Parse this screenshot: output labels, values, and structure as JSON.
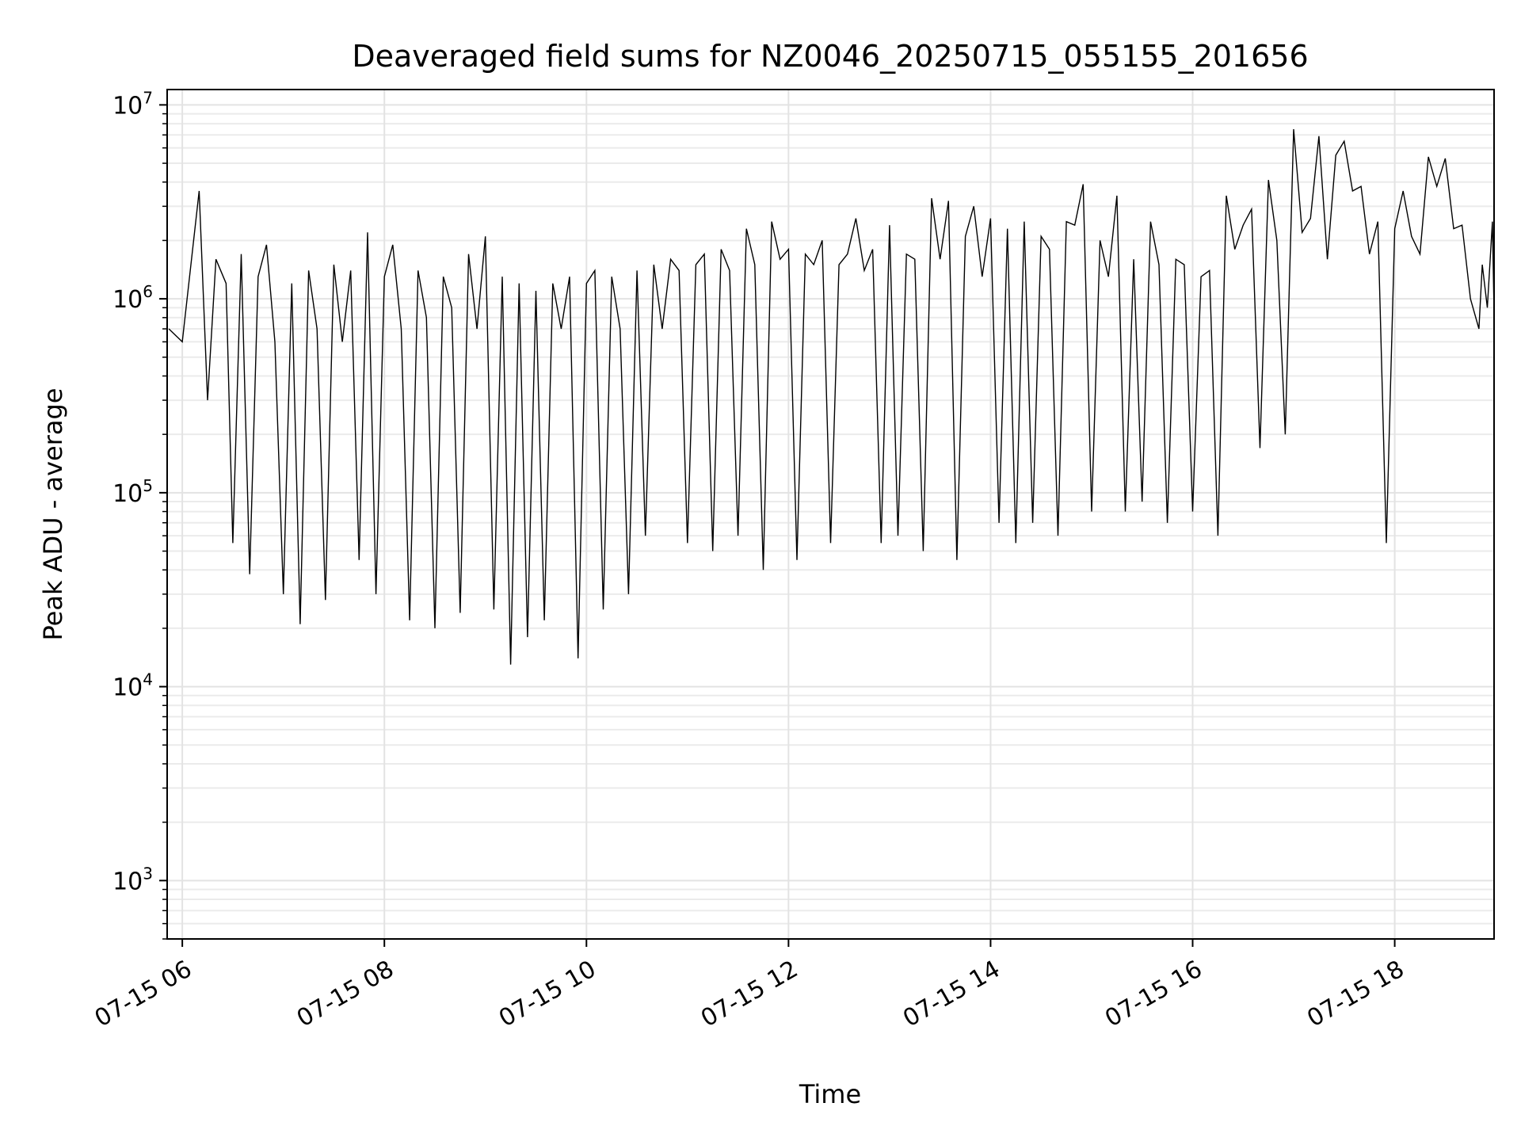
{
  "chart_data": {
    "type": "line",
    "title": "Deaveraged field sums for NZ0046_20250715_055155_201656",
    "xlabel": "Time",
    "ylabel": "Peak ADU - average",
    "yscale": "log",
    "ylim": [
      500,
      12000000
    ],
    "xlim": [
      "2025-07-15 05:51",
      "2025-07-15 18:59"
    ],
    "grid": true,
    "line_color": "#000000",
    "x_ticks": [
      {
        "label": "07-15 06",
        "value": "2025-07-15 06:00"
      },
      {
        "label": "07-15 08",
        "value": "2025-07-15 08:00"
      },
      {
        "label": "07-15 10",
        "value": "2025-07-15 10:00"
      },
      {
        "label": "07-15 12",
        "value": "2025-07-15 12:00"
      },
      {
        "label": "07-15 14",
        "value": "2025-07-15 14:00"
      },
      {
        "label": "07-15 16",
        "value": "2025-07-15 16:00"
      },
      {
        "label": "07-15 18",
        "value": "2025-07-15 18:00"
      }
    ],
    "y_ticks": [
      {
        "base": "10",
        "exp": "3",
        "value": 1000
      },
      {
        "base": "10",
        "exp": "4",
        "value": 10000
      },
      {
        "base": "10",
        "exp": "5",
        "value": 100000
      },
      {
        "base": "10",
        "exp": "6",
        "value": 1000000
      },
      {
        "base": "10",
        "exp": "7",
        "value": 10000000
      }
    ],
    "series": [
      {
        "x": [
          "05:52",
          "06:00",
          "06:10",
          "06:15",
          "06:20",
          "06:26",
          "06:30",
          "06:35",
          "06:40",
          "06:45",
          "06:50",
          "06:55",
          "07:00",
          "07:05",
          "07:10",
          "07:15",
          "07:20",
          "07:25",
          "07:30",
          "07:35",
          "07:40",
          "07:45",
          "07:50",
          "07:55",
          "08:00",
          "08:05",
          "08:10",
          "08:15",
          "08:20",
          "08:25",
          "08:30",
          "08:35",
          "08:40",
          "08:45",
          "08:50",
          "08:55",
          "09:00",
          "09:05",
          "09:10",
          "09:15",
          "09:20",
          "09:25",
          "09:30",
          "09:35",
          "09:40",
          "09:45",
          "09:50",
          "09:55",
          "10:00",
          "10:05",
          "10:10",
          "10:15",
          "10:20",
          "10:25",
          "10:30",
          "10:35",
          "10:40",
          "10:45",
          "10:50",
          "10:55",
          "11:00",
          "11:05",
          "11:10",
          "11:15",
          "11:20",
          "11:25",
          "11:30",
          "11:35",
          "11:40",
          "11:45",
          "11:50",
          "11:55",
          "12:00",
          "12:05",
          "12:10",
          "12:15",
          "12:20",
          "12:25",
          "12:30",
          "12:35",
          "12:40",
          "12:45",
          "12:50",
          "12:55",
          "13:00",
          "13:05",
          "13:10",
          "13:15",
          "13:20",
          "13:25",
          "13:30",
          "13:35",
          "13:40",
          "13:45",
          "13:50",
          "13:55",
          "14:00",
          "14:05",
          "14:10",
          "14:15",
          "14:20",
          "14:25",
          "14:30",
          "14:35",
          "14:40",
          "14:45",
          "14:50",
          "14:55",
          "15:00",
          "15:05",
          "15:10",
          "15:15",
          "15:20",
          "15:25",
          "15:30",
          "15:35",
          "15:40",
          "15:45",
          "15:50",
          "15:55",
          "16:00",
          "16:05",
          "16:10",
          "16:15",
          "16:20",
          "16:25",
          "16:30",
          "16:35",
          "16:40",
          "16:45",
          "16:50",
          "16:55",
          "17:00",
          "17:05",
          "17:10",
          "17:15",
          "17:20",
          "17:25",
          "17:30",
          "17:35",
          "17:40",
          "17:45",
          "17:50",
          "17:55",
          "18:00",
          "18:05",
          "18:10",
          "18:15",
          "18:20",
          "18:25",
          "18:30",
          "18:35",
          "18:40",
          "18:45",
          "18:50",
          "18:52",
          "18:55",
          "18:58",
          "18:59"
        ],
        "values": [
          700000,
          600000,
          3600000,
          300000,
          1600000,
          1200000,
          55000,
          1700000,
          38000,
          1300000,
          1900000,
          600000,
          30000,
          1200000,
          21000,
          1400000,
          700000,
          28000,
          1500000,
          600000,
          1400000,
          45000,
          2200000,
          30000,
          1300000,
          1900000,
          700000,
          22000,
          1400000,
          800000,
          20000,
          1300000,
          900000,
          24000,
          1700000,
          700000,
          2100000,
          25000,
          1300000,
          13000,
          1200000,
          18000,
          1100000,
          22000,
          1200000,
          700000,
          1300000,
          14000,
          1200000,
          1400000,
          25000,
          1300000,
          700000,
          30000,
          1400000,
          60000,
          1500000,
          700000,
          1600000,
          1400000,
          55000,
          1500000,
          1700000,
          50000,
          1800000,
          1400000,
          60000,
          2300000,
          1500000,
          40000,
          2500000,
          1600000,
          1800000,
          45000,
          1700000,
          1500000,
          2000000,
          55000,
          1500000,
          1700000,
          2600000,
          1400000,
          1800000,
          55000,
          2400000,
          60000,
          1700000,
          1600000,
          50000,
          3300000,
          1600000,
          3200000,
          45000,
          2100000,
          3000000,
          1300000,
          2600000,
          70000,
          2300000,
          55000,
          2500000,
          70000,
          2100000,
          1800000,
          60000,
          2500000,
          2400000,
          3900000,
          80000,
          2000000,
          1300000,
          3400000,
          80000,
          1600000,
          90000,
          2500000,
          1500000,
          70000,
          1600000,
          1500000,
          80000,
          1300000,
          1400000,
          60000,
          3400000,
          1800000,
          2400000,
          2900000,
          170000,
          4100000,
          2000000,
          200000,
          7500000,
          2200000,
          2600000,
          6900000,
          1600000,
          5500000,
          6500000,
          3600000,
          3800000,
          1700000,
          2500000,
          55000,
          2300000,
          3600000,
          2100000,
          1700000,
          5400000,
          3800000,
          5300000,
          2300000,
          2400000,
          1000000,
          700000,
          1500000,
          900000,
          2500000,
          850000
        ]
      }
    ]
  }
}
